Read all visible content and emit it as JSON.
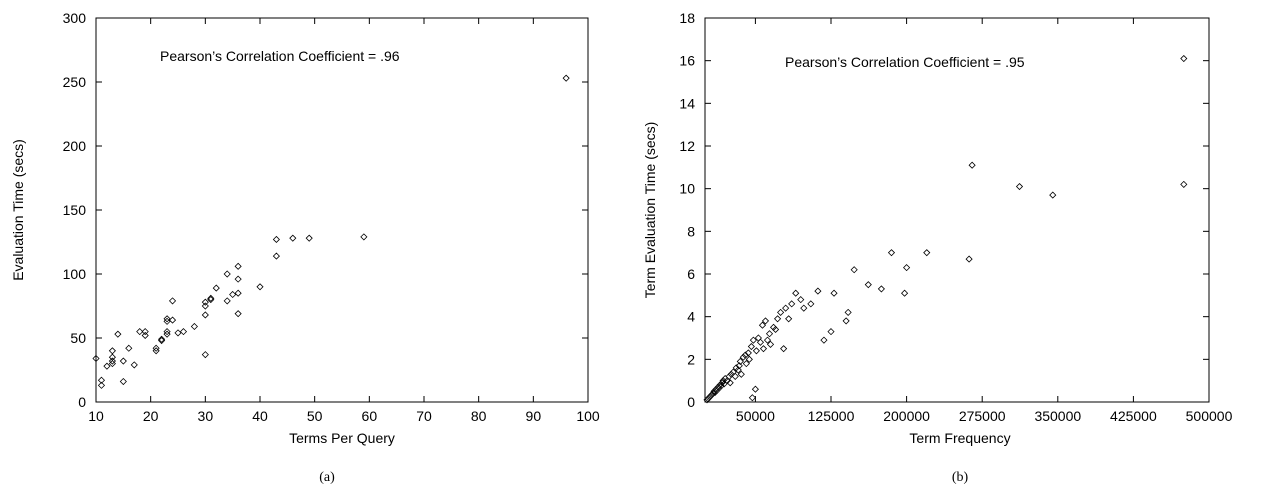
{
  "chart_data": [
    {
      "type": "scatter",
      "title": "",
      "caption": "(a)",
      "annotation": "Pearson’s Correlation Coefficient = .96",
      "xlabel": "Terms Per Query",
      "ylabel": "Evaluation Time (secs)",
      "xlim": [
        10,
        100
      ],
      "ylim": [
        0,
        300
      ],
      "xticks": [
        10,
        20,
        30,
        40,
        50,
        60,
        70,
        80,
        90,
        100
      ],
      "yticks": [
        0,
        50,
        100,
        150,
        200,
        250,
        300
      ],
      "grid": false,
      "marker": "diamond",
      "series": [
        {
          "points": [
            [
              10,
              34
            ],
            [
              11,
              13
            ],
            [
              11,
              17
            ],
            [
              12,
              28
            ],
            [
              13,
              32
            ],
            [
              13,
              35
            ],
            [
              13,
              40
            ],
            [
              13,
              30
            ],
            [
              14,
              53
            ],
            [
              15,
              16
            ],
            [
              15,
              32
            ],
            [
              16,
              42
            ],
            [
              17,
              29
            ],
            [
              18,
              55
            ],
            [
              19,
              52
            ],
            [
              19,
              55
            ],
            [
              21,
              40
            ],
            [
              21,
              42
            ],
            [
              22,
              48
            ],
            [
              22,
              49
            ],
            [
              23,
              53
            ],
            [
              23,
              55
            ],
            [
              23,
              65
            ],
            [
              23,
              63
            ],
            [
              24,
              64
            ],
            [
              24,
              79
            ],
            [
              25,
              54
            ],
            [
              26,
              55
            ],
            [
              28,
              59
            ],
            [
              30,
              37
            ],
            [
              30,
              68
            ],
            [
              30,
              75
            ],
            [
              30,
              78
            ],
            [
              31,
              80
            ],
            [
              31,
              81
            ],
            [
              32,
              89
            ],
            [
              34,
              79
            ],
            [
              34,
              100
            ],
            [
              35,
              84
            ],
            [
              36,
              69
            ],
            [
              36,
              85
            ],
            [
              36,
              96
            ],
            [
              36,
              106
            ],
            [
              40,
              90
            ],
            [
              43,
              114
            ],
            [
              43,
              127
            ],
            [
              46,
              128
            ],
            [
              49,
              128
            ],
            [
              59,
              129
            ],
            [
              96,
              253
            ]
          ]
        }
      ]
    },
    {
      "type": "scatter",
      "title": "",
      "caption": "(b)",
      "annotation": "Pearson’s Correlation Coefficient = .95",
      "xlabel": "Term Frequency",
      "ylabel": "Term Evaluation Time (secs)",
      "xlim": [
        0,
        500000
      ],
      "ylim": [
        0,
        18
      ],
      "xticks": [
        50000,
        125000,
        200000,
        275000,
        350000,
        425000,
        500000
      ],
      "xtick_labels": [
        "50000",
        "125000",
        "200000",
        "275000",
        "350000",
        "425000",
        "500000"
      ],
      "yticks": [
        0,
        2,
        4,
        6,
        8,
        10,
        12,
        14,
        16,
        18
      ],
      "grid": false,
      "marker": "diamond",
      "series": [
        {
          "points": [
            [
              2000,
              0.1
            ],
            [
              3000,
              0.15
            ],
            [
              4000,
              0.2
            ],
            [
              5000,
              0.25
            ],
            [
              6000,
              0.3
            ],
            [
              7000,
              0.35
            ],
            [
              8000,
              0.4
            ],
            [
              9000,
              0.5
            ],
            [
              10000,
              0.45
            ],
            [
              11000,
              0.6
            ],
            [
              12000,
              0.55
            ],
            [
              13000,
              0.7
            ],
            [
              14000,
              0.65
            ],
            [
              15000,
              0.8
            ],
            [
              16000,
              0.75
            ],
            [
              17000,
              0.9
            ],
            [
              18000,
              1.0
            ],
            [
              19000,
              0.85
            ],
            [
              20000,
              1.1
            ],
            [
              22000,
              1.0
            ],
            [
              24000,
              1.2
            ],
            [
              25000,
              0.9
            ],
            [
              26000,
              1.3
            ],
            [
              28000,
              1.4
            ],
            [
              30000,
              1.2
            ],
            [
              31000,
              1.6
            ],
            [
              33000,
              1.5
            ],
            [
              34000,
              1.7
            ],
            [
              35000,
              1.9
            ],
            [
              36000,
              1.3
            ],
            [
              38000,
              2.1
            ],
            [
              40000,
              2.2
            ],
            [
              41000,
              1.8
            ],
            [
              43000,
              2.3
            ],
            [
              44000,
              2.0
            ],
            [
              46000,
              2.6
            ],
            [
              47000,
              0.2
            ],
            [
              48000,
              2.9
            ],
            [
              50000,
              0.6
            ],
            [
              51000,
              2.4
            ],
            [
              53000,
              3.0
            ],
            [
              55000,
              2.8
            ],
            [
              57000,
              3.6
            ],
            [
              58000,
              2.5
            ],
            [
              60000,
              3.8
            ],
            [
              62000,
              2.9
            ],
            [
              64000,
              3.2
            ],
            [
              65000,
              2.7
            ],
            [
              68000,
              3.5
            ],
            [
              70000,
              3.4
            ],
            [
              72000,
              3.9
            ],
            [
              75000,
              4.2
            ],
            [
              78000,
              2.5
            ],
            [
              80000,
              4.4
            ],
            [
              83000,
              3.9
            ],
            [
              86000,
              4.6
            ],
            [
              90000,
              5.1
            ],
            [
              95000,
              4.8
            ],
            [
              98000,
              4.4
            ],
            [
              105000,
              4.6
            ],
            [
              112000,
              5.2
            ],
            [
              118000,
              2.9
            ],
            [
              125000,
              3.3
            ],
            [
              128000,
              5.1
            ],
            [
              140000,
              3.8
            ],
            [
              142000,
              4.2
            ],
            [
              148000,
              6.2
            ],
            [
              162000,
              5.5
            ],
            [
              175000,
              5.3
            ],
            [
              185000,
              7.0
            ],
            [
              198000,
              5.1
            ],
            [
              200000,
              6.3
            ],
            [
              220000,
              7.0
            ],
            [
              262000,
              6.7
            ],
            [
              265000,
              11.1
            ],
            [
              312000,
              10.1
            ],
            [
              345000,
              9.7
            ],
            [
              475000,
              10.2
            ],
            [
              475000,
              16.1
            ]
          ]
        }
      ]
    }
  ]
}
